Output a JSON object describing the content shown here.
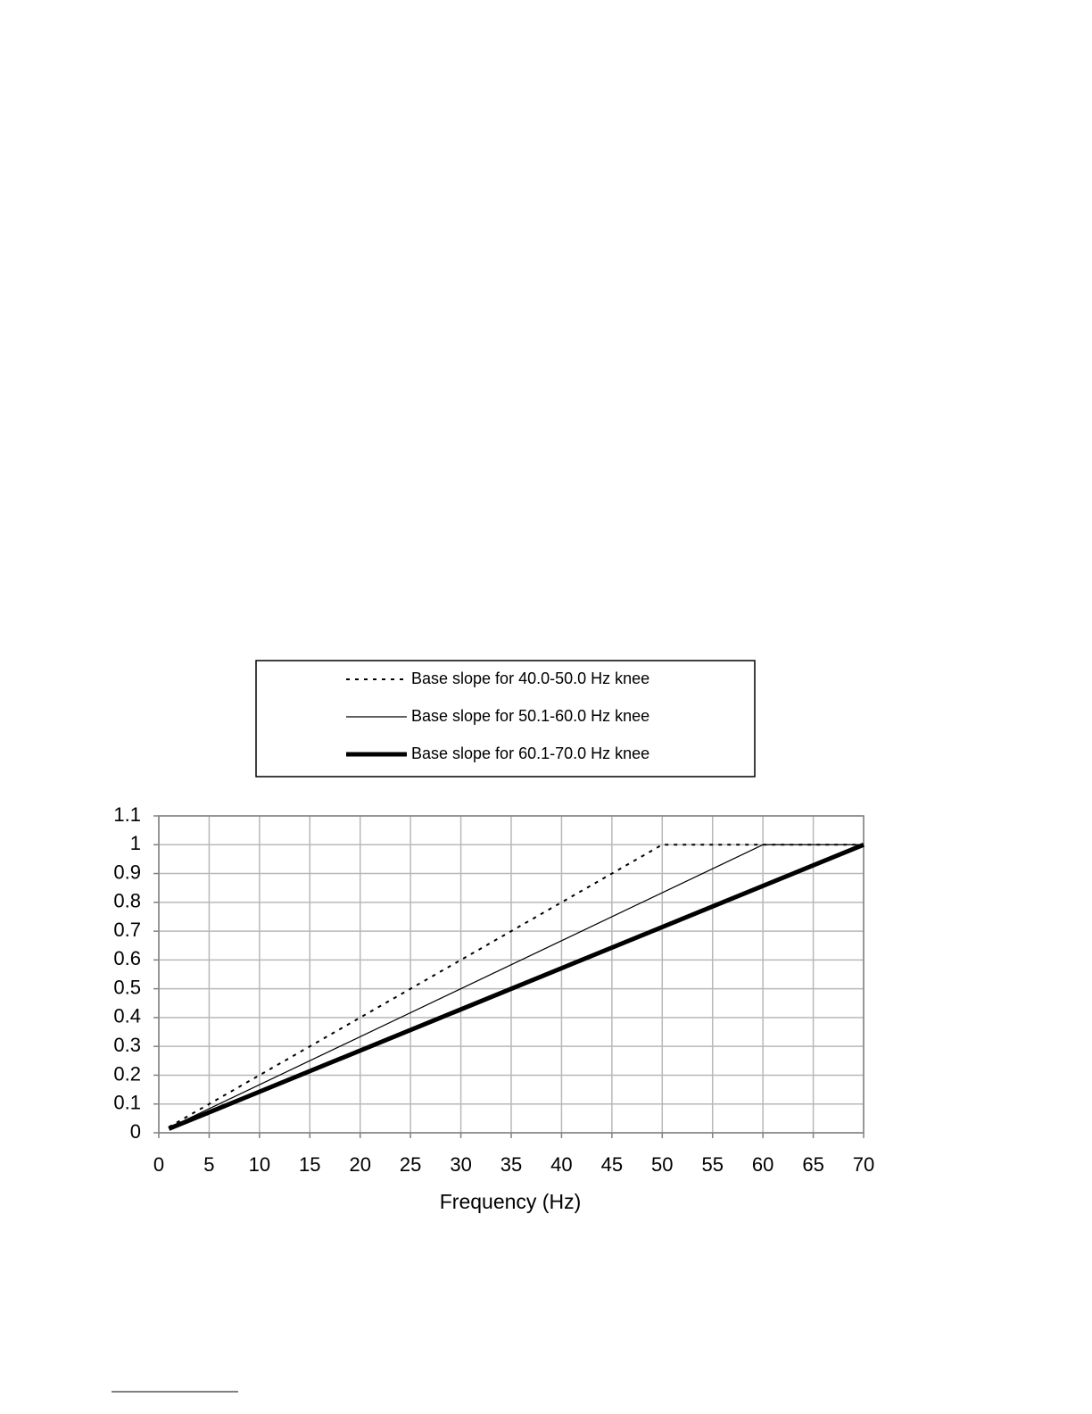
{
  "chart_data": {
    "type": "line",
    "xlabel": "Frequency (Hz)",
    "xlim": [
      0,
      70
    ],
    "xticks": [
      0,
      5,
      10,
      15,
      20,
      25,
      30,
      35,
      40,
      45,
      50,
      55,
      60,
      65,
      70
    ],
    "ylim": [
      0,
      1.1
    ],
    "yticks": [
      0,
      0.1,
      0.2,
      0.3,
      0.4,
      0.5,
      0.6,
      0.7,
      0.8,
      0.9,
      1,
      1.1
    ],
    "grid": true,
    "legend": "top",
    "series": [
      {
        "name": "Base slope for 40.0-50.0 Hz knee",
        "color": "#000000",
        "linestyle": "dotted",
        "linewidth": 2,
        "x": [
          1,
          50,
          70
        ],
        "values": [
          0.02,
          1,
          1
        ]
      },
      {
        "name": "Base slope for 50.1-60.0 Hz knee",
        "color": "#000000",
        "linestyle": "solid",
        "linewidth": 1.2,
        "x": [
          1,
          60,
          70
        ],
        "values": [
          0.017,
          1,
          1
        ]
      },
      {
        "name": "Base slope for 60.1-70.0 Hz knee",
        "color": "#000000",
        "linestyle": "solid",
        "linewidth": 5,
        "x": [
          1,
          70
        ],
        "values": [
          0.014,
          1
        ]
      }
    ]
  }
}
